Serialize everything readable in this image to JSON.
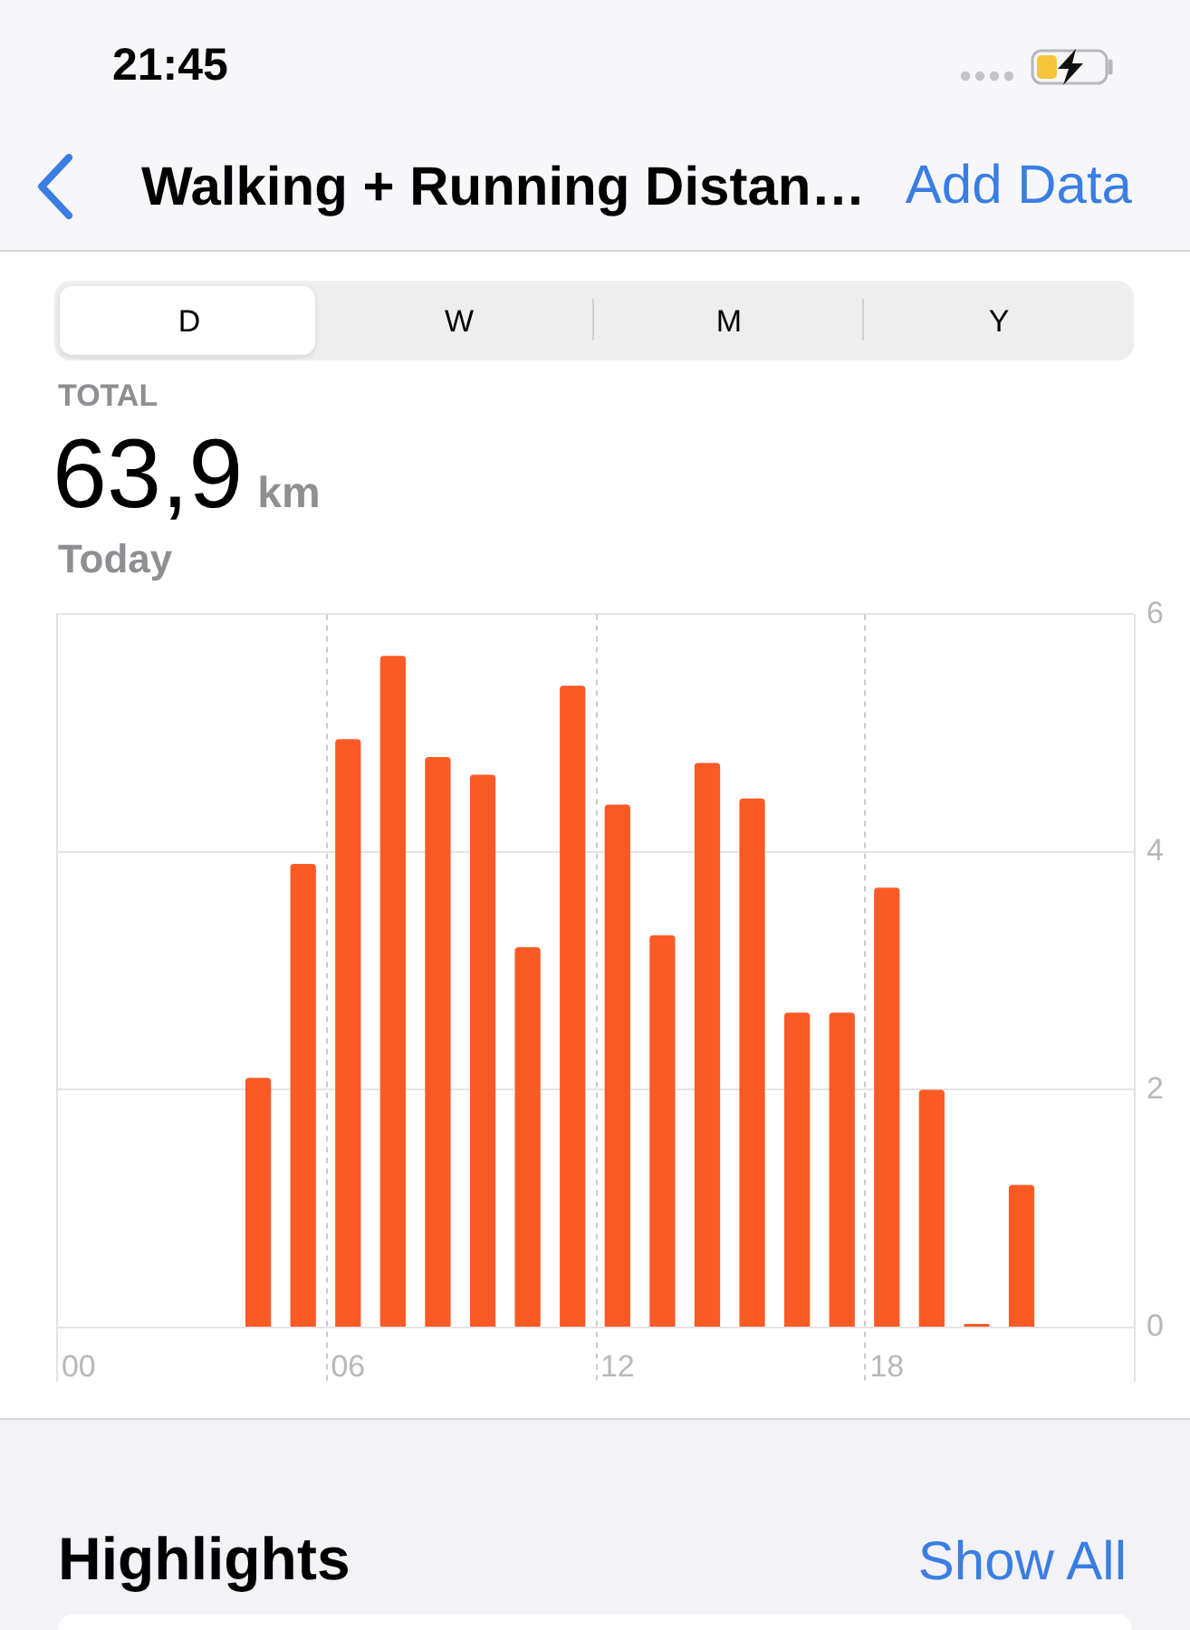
{
  "chart_data": {
    "type": "bar",
    "title": "Walking + Running Distan…",
    "categories": [
      "00",
      null,
      null,
      null,
      null,
      null,
      "06",
      null,
      null,
      null,
      null,
      null,
      "12",
      null,
      null,
      null,
      null,
      null,
      "18",
      null,
      null,
      null,
      null,
      null
    ],
    "values": [
      null,
      null,
      null,
      null,
      2.1,
      3.9,
      4.95,
      5.65,
      4.8,
      4.65,
      3.2,
      5.4,
      4.4,
      3.3,
      4.75,
      4.45,
      2.65,
      2.65,
      3.7,
      2.0,
      0.03,
      1.2,
      null,
      null
    ],
    "color": "#fc5a25",
    "ylim": [
      0,
      6
    ],
    "yticks": [
      0,
      2,
      4,
      6
    ],
    "grid": true,
    "annotations": [
      "21:45",
      "Add Data",
      "D",
      "W",
      "M",
      "Y",
      "TOTAL",
      "63,9",
      "km",
      "Today",
      "Highlights",
      "Show All"
    ]
  }
}
